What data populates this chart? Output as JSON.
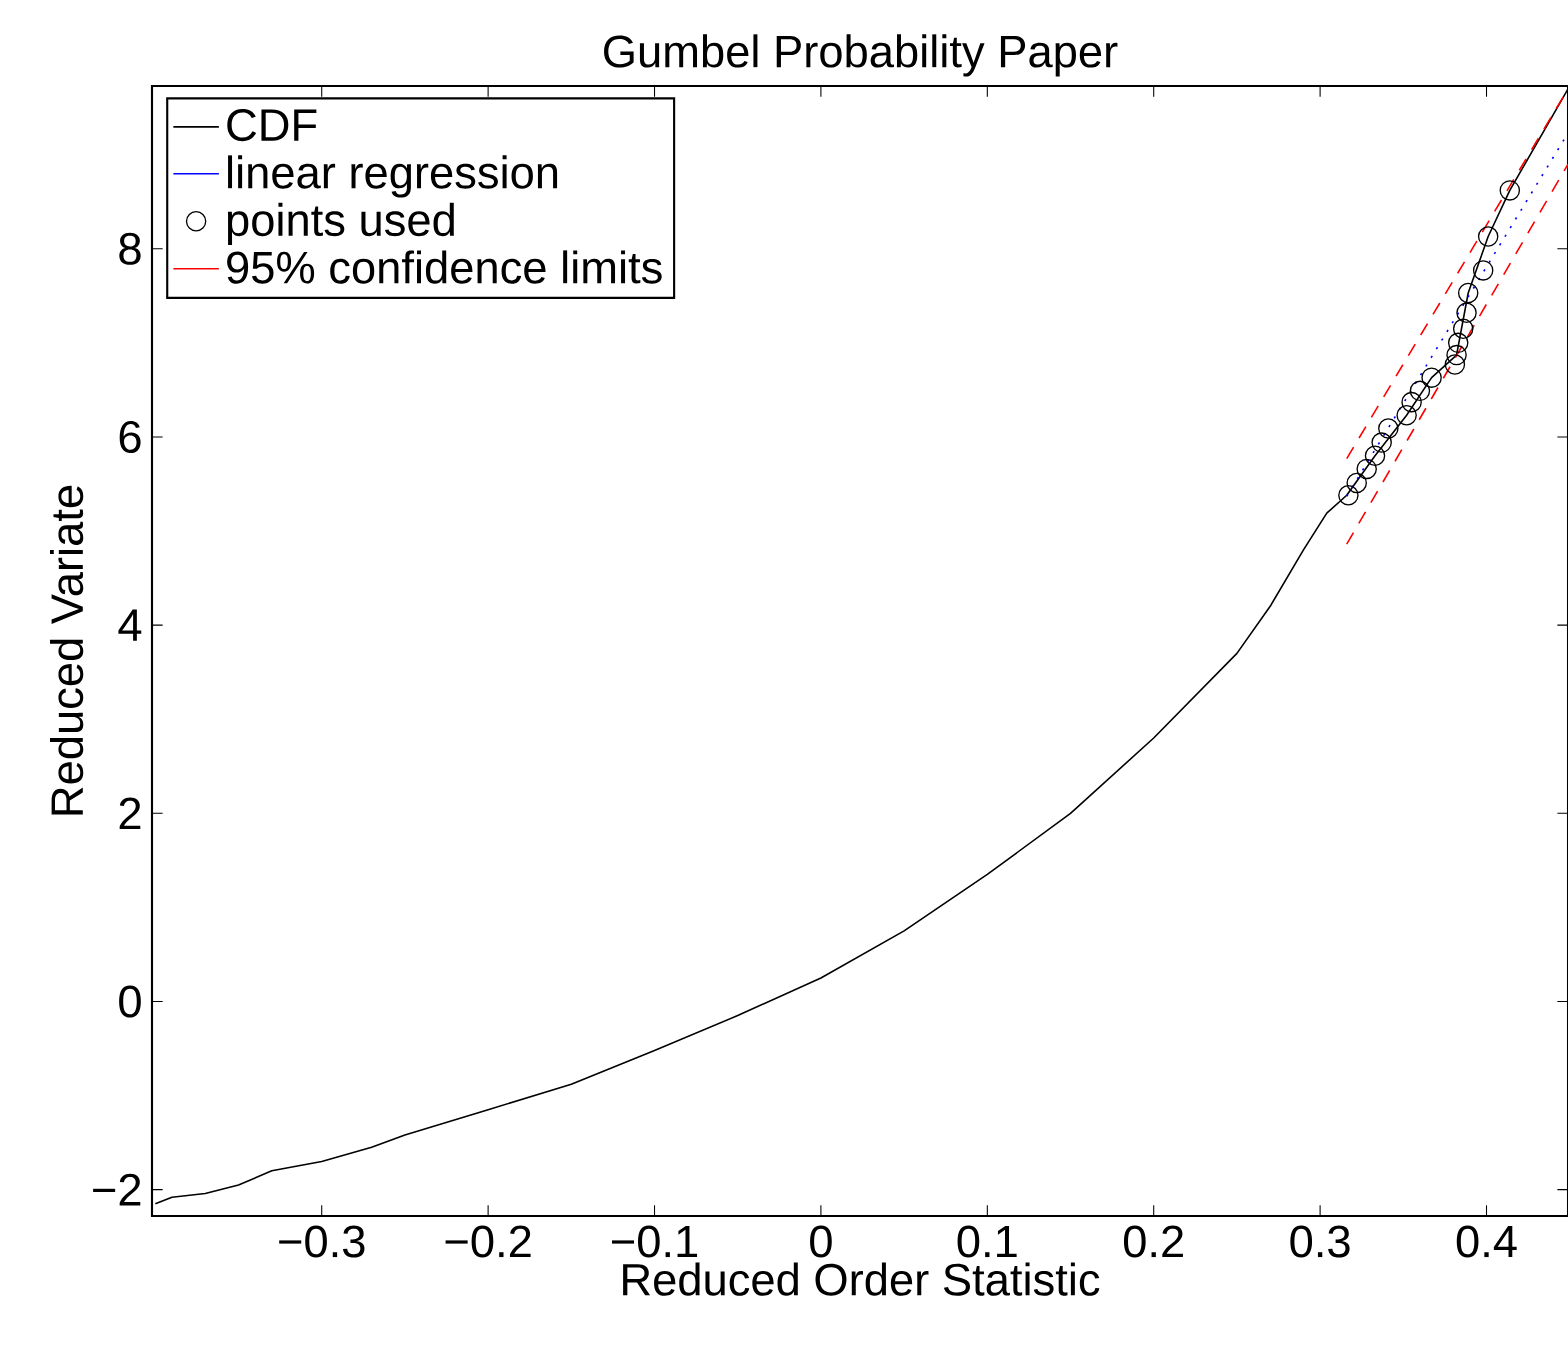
{
  "chart_data": {
    "type": "line",
    "title": "Gumbel Probability Paper",
    "xlabel": "Reduced Order Statistic",
    "ylabel": "Reduced Variate",
    "xlim": [
      -0.402,
      0.449
    ],
    "ylim": [
      -2.28,
      9.73
    ],
    "xticks": [
      {
        "value": -0.3,
        "label": "−0.3"
      },
      {
        "value": -0.2,
        "label": "−0.2"
      },
      {
        "value": -0.1,
        "label": "−0.1"
      },
      0,
      0.1,
      0.2,
      0.3,
      0.4
    ],
    "yticks": [
      {
        "value": -2,
        "label": "−2"
      },
      0,
      2,
      4,
      6,
      8
    ],
    "grid": false,
    "legend": "top left",
    "series": [
      {
        "name": "CDF",
        "color": "#000000",
        "line_style": "solid",
        "marker": "none",
        "x": [
          -0.4,
          -0.39,
          -0.37,
          -0.35,
          -0.33,
          -0.3,
          -0.27,
          -0.25,
          -0.2,
          -0.15,
          -0.1,
          -0.05,
          0,
          0.05,
          0.1,
          0.15,
          0.2,
          0.25,
          0.27,
          0.29,
          0.304,
          0.316,
          0.333,
          0.352,
          0.367,
          0.382,
          0.389,
          0.401,
          0.414,
          0.449
        ],
        "values": [
          -2.15,
          -2.08,
          -2.04,
          -1.95,
          -1.8,
          -1.7,
          -1.55,
          -1.42,
          -1.15,
          -0.88,
          -0.52,
          -0.15,
          0.25,
          0.75,
          1.35,
          2.0,
          2.8,
          3.7,
          4.2,
          4.8,
          5.19,
          5.38,
          5.8,
          6.23,
          6.63,
          6.87,
          7.53,
          8.13,
          8.62,
          9.7
        ]
      },
      {
        "name": "linear regression",
        "color": "#0000ff",
        "line_style": "dotted",
        "marker": "none",
        "x": [
          0.316,
          0.449
        ],
        "values": [
          5.37,
          9.23
        ]
      },
      {
        "name": "points used",
        "type": "scatter",
        "color": "#000000",
        "marker": "circle",
        "x": [
          0.317,
          0.322,
          0.328,
          0.333,
          0.337,
          0.341,
          0.352,
          0.355,
          0.36,
          0.367,
          0.381,
          0.382,
          0.383,
          0.386,
          0.388,
          0.389,
          0.398,
          0.401,
          0.414
        ],
        "values": [
          5.38,
          5.51,
          5.66,
          5.8,
          5.94,
          6.09,
          6.23,
          6.37,
          6.49,
          6.63,
          6.77,
          6.87,
          7.0,
          7.15,
          7.32,
          7.53,
          7.77,
          8.13,
          8.62
        ]
      },
      {
        "name": "95% confidence limits",
        "color": "#ff0000",
        "line_style": "dashed",
        "marker": "none",
        "x": [
          0.316,
          0.449
        ],
        "values": [
          5.77,
          9.7
        ]
      },
      {
        "color": "#ff0000",
        "line_style": "dashed",
        "marker": "none",
        "x": [
          0.316,
          0.449
        ],
        "values": [
          4.86,
          8.9
        ]
      }
    ]
  }
}
